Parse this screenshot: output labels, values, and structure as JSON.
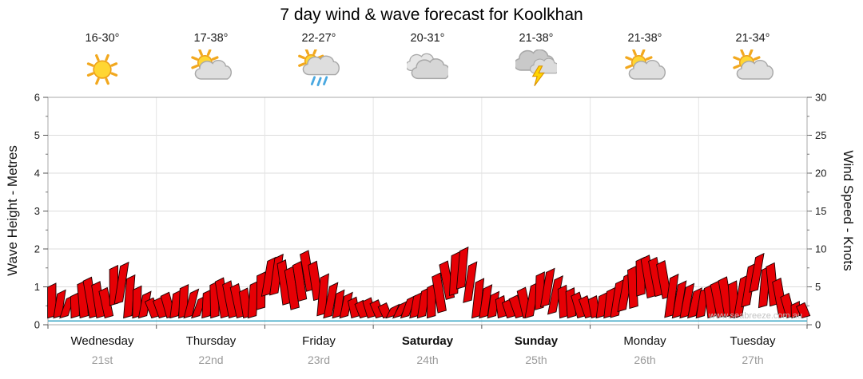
{
  "title": "7 day wind & wave forecast for Koolkhan",
  "watermark": "www.seabreeze.com.au",
  "axes": {
    "left_label": "Wave Height - Metres",
    "right_label": "Wind Speed - Knots"
  },
  "days": [
    {
      "name": "Wednesday",
      "date": "21st",
      "temp": "16-30°",
      "icon": "sunny",
      "bold": false
    },
    {
      "name": "Thursday",
      "date": "22nd",
      "temp": "17-38°",
      "icon": "partly-cloudy",
      "bold": false
    },
    {
      "name": "Friday",
      "date": "23rd",
      "temp": "22-27°",
      "icon": "showers",
      "bold": false
    },
    {
      "name": "Saturday",
      "date": "24th",
      "temp": "20-31°",
      "icon": "cloudy",
      "bold": true
    },
    {
      "name": "Sunday",
      "date": "25th",
      "temp": "21-38°",
      "icon": "storm",
      "bold": true
    },
    {
      "name": "Monday",
      "date": "26th",
      "temp": "21-38°",
      "icon": "partly-cloudy",
      "bold": false
    },
    {
      "name": "Tuesday",
      "date": "27th",
      "temp": "21-34°",
      "icon": "partly-cloudy",
      "bold": false
    }
  ],
  "chart_data": {
    "type": "area",
    "subtype": "wind-barb-forecast",
    "x_days": [
      "Wednesday 21st",
      "Thursday 22nd",
      "Friday 23rd",
      "Saturday 24th",
      "Sunday 25th",
      "Monday 26th",
      "Tuesday 27th"
    ],
    "points_per_day": 14,
    "left_axis": {
      "label": "Wave Height - Metres",
      "min": 0,
      "max": 6,
      "ticks": [
        0,
        1,
        2,
        3,
        4,
        5,
        6
      ]
    },
    "right_axis": {
      "label": "Wind Speed - Knots",
      "min": 0,
      "max": 30,
      "ticks": [
        0,
        5,
        10,
        15,
        20,
        25,
        30
      ]
    },
    "grid": true,
    "series": [
      {
        "name": "Wind Speed",
        "unit": "knots",
        "axis": "right",
        "style": "red-flags",
        "color": "#e60005",
        "values": [
          5,
          4.5,
          3.5,
          4,
          5.5,
          6,
          5.5,
          4.5,
          7.5,
          8,
          6.5,
          5,
          4,
          3.5,
          3.5,
          4,
          4.5,
          5,
          4.5,
          3.5,
          4.5,
          5.5,
          6,
          5.5,
          5,
          4.5,
          5.5,
          6.5,
          8.5,
          9,
          8.5,
          7.5,
          8,
          9.5,
          8,
          6.5,
          5.5,
          4.5,
          4,
          3.5,
          3,
          3.5,
          3,
          2.5,
          2.5,
          3,
          3.5,
          4,
          4.5,
          5,
          6.5,
          8,
          9.5,
          10,
          8,
          6,
          5,
          4,
          3.5,
          3,
          3.5,
          4.5,
          5.5,
          6.5,
          7,
          6,
          5,
          4.5,
          4,
          3.5,
          3.5,
          4,
          4.5,
          5.5,
          6.5,
          7.5,
          8.5,
          9,
          8.5,
          8,
          6.5,
          5.5,
          5,
          4.5,
          4.5,
          5,
          5.5,
          6,
          5.5,
          6.5,
          8,
          9,
          7.5,
          8,
          6,
          4,
          3,
          2.5
        ]
      },
      {
        "name": "Wave Height",
        "unit": "metres",
        "axis": "left",
        "style": "line",
        "color": "#3aa6c4",
        "constant": 0.1
      }
    ]
  }
}
